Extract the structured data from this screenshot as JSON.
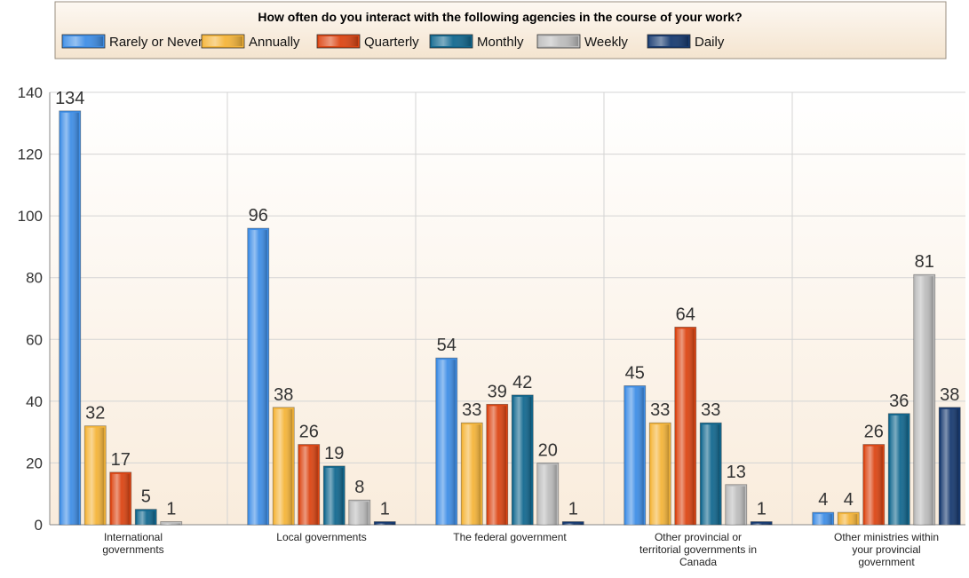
{
  "chart_data": {
    "type": "bar",
    "title": "How often do you interact with the following agencies in the course of your work?",
    "xlabel": "",
    "ylabel": "",
    "ylim": [
      0,
      140
    ],
    "yticks": [
      0,
      20,
      40,
      60,
      80,
      100,
      120,
      140
    ],
    "grid": true,
    "legend_position": "top",
    "categories": [
      [
        "International",
        "governments"
      ],
      [
        "Local governments"
      ],
      [
        "The federal government"
      ],
      [
        "Other provincial or",
        "territorial governments in",
        "Canada"
      ],
      [
        "Other ministries within",
        "your provincial",
        "government"
      ]
    ],
    "series": [
      {
        "name": "Rarely or Never",
        "color": "#3f8ee6",
        "values": [
          134,
          96,
          54,
          45,
          4
        ]
      },
      {
        "name": "Annually",
        "color": "#f5b53a",
        "values": [
          32,
          38,
          33,
          33,
          4
        ]
      },
      {
        "name": "Quarterly",
        "color": "#dc4513",
        "values": [
          17,
          26,
          39,
          64,
          26
        ]
      },
      {
        "name": "Monthly",
        "color": "#12688f",
        "values": [
          5,
          19,
          42,
          33,
          36
        ]
      },
      {
        "name": "Weekly",
        "color": "#bdbdbd",
        "values": [
          1,
          8,
          20,
          13,
          81
        ]
      },
      {
        "name": "Daily",
        "color": "#173a70",
        "values": [
          null,
          1,
          1,
          1,
          38
        ]
      }
    ]
  }
}
